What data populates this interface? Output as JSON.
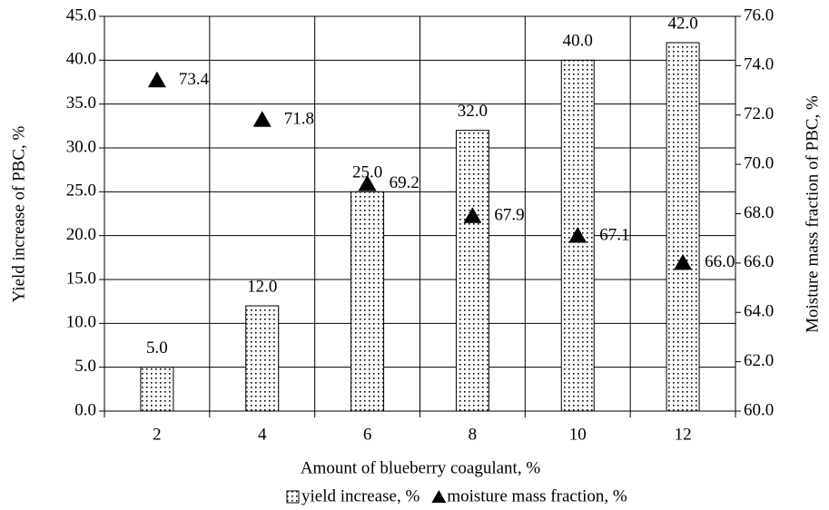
{
  "chart_data": {
    "type": "bar",
    "categories": [
      "2",
      "4",
      "6",
      "8",
      "10",
      "12"
    ],
    "xlabel": "Amount of blueberry coagulant, %",
    "ylabel": "Yield increase of  PBC, %",
    "y2label": "Moisture mass fraction of  PBC, %",
    "ylim": [
      0,
      45
    ],
    "yticks": [
      {
        "value": 0,
        "label": "0.0"
      },
      {
        "value": 5,
        "label": "5.0"
      },
      {
        "value": 10,
        "label": "10.0"
      },
      {
        "value": 15,
        "label": "15.0"
      },
      {
        "value": 20,
        "label": "20.0"
      },
      {
        "value": 25,
        "label": "25.0"
      },
      {
        "value": 30,
        "label": "30.0"
      },
      {
        "value": 35,
        "label": "35.0"
      },
      {
        "value": 40,
        "label": "40.0"
      },
      {
        "value": 45,
        "label": "45.0"
      }
    ],
    "y2lim": [
      60,
      76
    ],
    "y2ticks": [
      {
        "value": 60,
        "label": "60.0"
      },
      {
        "value": 62,
        "label": "62.0"
      },
      {
        "value": 64,
        "label": "64.0"
      },
      {
        "value": 66,
        "label": "66.0"
      },
      {
        "value": 68,
        "label": "68.0"
      },
      {
        "value": 70,
        "label": "70.0"
      },
      {
        "value": 72,
        "label": "72.0"
      },
      {
        "value": 74,
        "label": "74.0"
      },
      {
        "value": 76,
        "label": "76.0"
      }
    ],
    "grid": true,
    "legend": "bottom",
    "series": [
      {
        "name": "yield increase, %",
        "type": "bar",
        "color": "#000000",
        "axis": "y",
        "values": [
          5,
          12,
          25,
          32,
          40,
          42
        ],
        "value_labels": [
          "5.0",
          "12.0",
          "25.0",
          "32.0",
          "40.0",
          "42.0"
        ]
      },
      {
        "name": "moisture mass fraction, %",
        "type": "scatter",
        "color": "#000000",
        "axis": "y2",
        "values": [
          73.4,
          71.8,
          69.2,
          67.9,
          67.1,
          66.0
        ],
        "value_labels": [
          "73.4",
          "71.8",
          "69.2",
          "67.9",
          "67.1",
          "66.0"
        ]
      }
    ]
  }
}
